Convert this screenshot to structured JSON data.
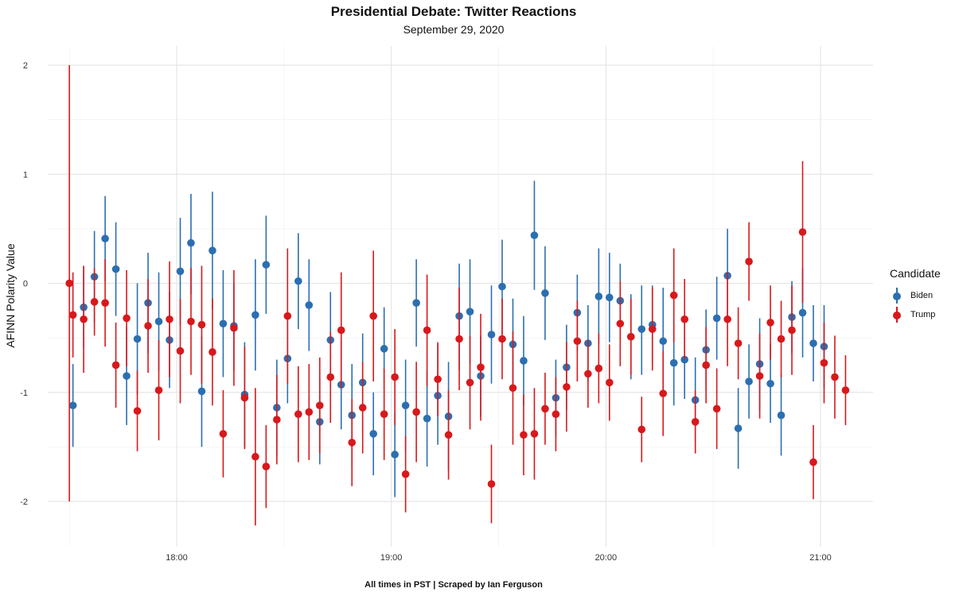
{
  "title": "Presidential Debate: Twitter Reactions",
  "subtitle": "September 29, 2020",
  "caption": "All times in PST | Scraped by Ian Ferguson",
  "legend": {
    "title": "Candidate",
    "items": [
      {
        "label": "Biden",
        "color": "#2C6FB0"
      },
      {
        "label": "Trump",
        "color": "#D7191C"
      }
    ]
  },
  "chart_data": {
    "type": "scatter",
    "subtype": "pointrange",
    "ylabel": "AFINN Polarity Value",
    "xlabel": "",
    "x_unit": "time (PST)",
    "xlim": [
      "17:30",
      "21:05"
    ],
    "ylim": [
      -2.4,
      2.2
    ],
    "x_ticks": [
      "18:00",
      "19:00",
      "20:00",
      "21:00"
    ],
    "y_ticks": [
      -2,
      -1,
      0,
      1,
      2
    ],
    "y_tick_labels": [
      "-2",
      "-1",
      "0",
      "1",
      "2"
    ],
    "grid": true,
    "legend_position": "right",
    "series": [
      {
        "name": "Biden",
        "color": "#2C6FB0",
        "points": [
          {
            "x": "17:31",
            "y": -1.12,
            "lo": -1.5,
            "hi": -0.74
          },
          {
            "x": "17:34",
            "y": -0.22,
            "lo": -0.6,
            "hi": 0.16
          },
          {
            "x": "17:37",
            "y": 0.06,
            "lo": -0.36,
            "hi": 0.48
          },
          {
            "x": "17:40",
            "y": 0.41,
            "lo": 0.02,
            "hi": 0.8
          },
          {
            "x": "17:43",
            "y": 0.13,
            "lo": -0.3,
            "hi": 0.56
          },
          {
            "x": "17:46",
            "y": -0.85,
            "lo": -1.3,
            "hi": -0.4
          },
          {
            "x": "17:49",
            "y": -0.51,
            "lo": -1.02,
            "hi": 0.0
          },
          {
            "x": "17:52",
            "y": -0.18,
            "lo": -0.64,
            "hi": 0.28
          },
          {
            "x": "17:55",
            "y": -0.35,
            "lo": -0.8,
            "hi": 0.1
          },
          {
            "x": "17:58",
            "y": -0.52,
            "lo": -0.96,
            "hi": -0.08
          },
          {
            "x": "18:01",
            "y": 0.11,
            "lo": -0.38,
            "hi": 0.6
          },
          {
            "x": "18:04",
            "y": 0.37,
            "lo": -0.1,
            "hi": 0.82
          },
          {
            "x": "18:07",
            "y": -0.99,
            "lo": -1.5,
            "hi": -0.48
          },
          {
            "x": "18:10",
            "y": 0.3,
            "lo": -0.24,
            "hi": 0.84
          },
          {
            "x": "18:13",
            "y": -0.37,
            "lo": -0.86,
            "hi": 0.12
          },
          {
            "x": "18:16",
            "y": -0.39,
            "lo": -0.8,
            "hi": 0.0
          },
          {
            "x": "18:19",
            "y": -1.02,
            "lo": -1.5,
            "hi": -0.54
          },
          {
            "x": "18:22",
            "y": -0.29,
            "lo": -0.8,
            "hi": 0.22
          },
          {
            "x": "18:25",
            "y": 0.17,
            "lo": -0.28,
            "hi": 0.62
          },
          {
            "x": "18:28",
            "y": -1.14,
            "lo": -1.58,
            "hi": -0.7
          },
          {
            "x": "18:31",
            "y": -0.69,
            "lo": -1.1,
            "hi": -0.28
          },
          {
            "x": "18:34",
            "y": 0.02,
            "lo": -0.42,
            "hi": 0.46
          },
          {
            "x": "18:37",
            "y": -0.2,
            "lo": -0.62,
            "hi": 0.22
          },
          {
            "x": "18:40",
            "y": -1.27,
            "lo": -1.66,
            "hi": -0.88
          },
          {
            "x": "18:43",
            "y": -0.52,
            "lo": -0.96,
            "hi": -0.08
          },
          {
            "x": "18:46",
            "y": -0.93,
            "lo": -1.34,
            "hi": -0.52
          },
          {
            "x": "18:49",
            "y": -1.21,
            "lo": -1.68,
            "hi": -0.74
          },
          {
            "x": "18:52",
            "y": -0.91,
            "lo": -1.36,
            "hi": -0.46
          },
          {
            "x": "18:55",
            "y": -1.38,
            "lo": -1.76,
            "hi": -1.0
          },
          {
            "x": "18:58",
            "y": -0.6,
            "lo": -0.98,
            "hi": -0.22
          },
          {
            "x": "19:01",
            "y": -1.57,
            "lo": -1.96,
            "hi": -1.18
          },
          {
            "x": "19:04",
            "y": -1.12,
            "lo": -1.54,
            "hi": -0.7
          },
          {
            "x": "19:07",
            "y": -0.18,
            "lo": -0.58,
            "hi": 0.22
          },
          {
            "x": "19:10",
            "y": -1.24,
            "lo": -1.68,
            "hi": -0.8
          },
          {
            "x": "19:13",
            "y": -1.03,
            "lo": -1.48,
            "hi": -0.56
          },
          {
            "x": "19:16",
            "y": -1.22,
            "lo": -1.72,
            "hi": -0.72
          },
          {
            "x": "19:19",
            "y": -0.3,
            "lo": -0.8,
            "hi": 0.18
          },
          {
            "x": "19:22",
            "y": -0.26,
            "lo": -0.74,
            "hi": 0.22
          },
          {
            "x": "19:25",
            "y": -0.85,
            "lo": -1.22,
            "hi": -0.48
          },
          {
            "x": "19:28",
            "y": -0.47,
            "lo": -0.92,
            "hi": -0.02
          },
          {
            "x": "19:31",
            "y": -0.03,
            "lo": -0.46,
            "hi": 0.4
          },
          {
            "x": "19:34",
            "y": -0.56,
            "lo": -0.98,
            "hi": -0.14
          },
          {
            "x": "19:37",
            "y": -0.71,
            "lo": -1.12,
            "hi": -0.3
          },
          {
            "x": "19:40",
            "y": 0.44,
            "lo": -0.06,
            "hi": 0.94
          },
          {
            "x": "19:43",
            "y": -0.09,
            "lo": -0.52,
            "hi": 0.34
          },
          {
            "x": "19:46",
            "y": -1.05,
            "lo": -1.4,
            "hi": -0.7
          },
          {
            "x": "19:49",
            "y": -0.77,
            "lo": -1.16,
            "hi": -0.38
          },
          {
            "x": "19:52",
            "y": -0.27,
            "lo": -0.62,
            "hi": 0.08
          },
          {
            "x": "19:55",
            "y": -0.55,
            "lo": -0.9,
            "hi": -0.2
          },
          {
            "x": "19:58",
            "y": -0.12,
            "lo": -0.56,
            "hi": 0.32
          },
          {
            "x": "20:01",
            "y": -0.13,
            "lo": -0.54,
            "hi": 0.28
          },
          {
            "x": "20:04",
            "y": -0.16,
            "lo": -0.5,
            "hi": 0.18
          },
          {
            "x": "20:07",
            "y": -0.49,
            "lo": -0.88,
            "hi": -0.1
          },
          {
            "x": "20:10",
            "y": -0.42,
            "lo": -0.84,
            "hi": -0.02
          },
          {
            "x": "20:13",
            "y": -0.38,
            "lo": -0.74,
            "hi": -0.02
          },
          {
            "x": "20:16",
            "y": -0.53,
            "lo": -1.02,
            "hi": -0.04
          },
          {
            "x": "20:19",
            "y": -0.73,
            "lo": -1.12,
            "hi": -0.34
          },
          {
            "x": "20:22",
            "y": -0.7,
            "lo": -1.06,
            "hi": -0.34
          },
          {
            "x": "20:25",
            "y": -1.07,
            "lo": -1.46,
            "hi": -0.68
          },
          {
            "x": "20:28",
            "y": -0.61,
            "lo": -0.98,
            "hi": -0.24
          },
          {
            "x": "20:31",
            "y": -0.32,
            "lo": -0.7,
            "hi": 0.06
          },
          {
            "x": "20:34",
            "y": 0.07,
            "lo": -0.36,
            "hi": 0.5
          },
          {
            "x": "20:37",
            "y": -1.33,
            "lo": -1.7,
            "hi": -0.96
          },
          {
            "x": "20:40",
            "y": -0.9,
            "lo": -1.24,
            "hi": -0.56
          },
          {
            "x": "20:43",
            "y": -0.74,
            "lo": -1.16,
            "hi": -0.32
          },
          {
            "x": "20:46",
            "y": -0.92,
            "lo": -1.28,
            "hi": -0.56
          },
          {
            "x": "20:49",
            "y": -1.21,
            "lo": -1.58,
            "hi": -0.84
          },
          {
            "x": "20:52",
            "y": -0.31,
            "lo": -0.64,
            "hi": 0.02
          },
          {
            "x": "20:55",
            "y": -0.27,
            "lo": -0.68,
            "hi": 0.14
          },
          {
            "x": "20:58",
            "y": -0.55,
            "lo": -0.9,
            "hi": -0.2
          },
          {
            "x": "21:01",
            "y": -0.58,
            "lo": -0.96,
            "hi": -0.2
          }
        ]
      },
      {
        "name": "Trump",
        "color": "#D7191C",
        "points": [
          {
            "x": "17:30",
            "y": 0.0,
            "lo": -2.0,
            "hi": 2.0
          },
          {
            "x": "17:31",
            "y": -0.29,
            "lo": -0.68,
            "hi": 0.1
          },
          {
            "x": "17:34",
            "y": -0.33,
            "lo": -0.82,
            "hi": 0.16
          },
          {
            "x": "17:37",
            "y": -0.17,
            "lo": -0.48,
            "hi": 0.14
          },
          {
            "x": "17:40",
            "y": -0.18,
            "lo": -0.58,
            "hi": 0.22
          },
          {
            "x": "17:43",
            "y": -0.75,
            "lo": -1.14,
            "hi": -0.36
          },
          {
            "x": "17:46",
            "y": -0.32,
            "lo": -0.76,
            "hi": 0.12
          },
          {
            "x": "17:49",
            "y": -1.17,
            "lo": -1.54,
            "hi": -0.8
          },
          {
            "x": "17:52",
            "y": -0.39,
            "lo": -0.82,
            "hi": 0.04
          },
          {
            "x": "17:55",
            "y": -0.98,
            "lo": -1.44,
            "hi": -0.52
          },
          {
            "x": "17:58",
            "y": -0.33,
            "lo": -0.86,
            "hi": 0.2
          },
          {
            "x": "18:01",
            "y": -0.62,
            "lo": -1.1,
            "hi": -0.14
          },
          {
            "x": "18:04",
            "y": -0.35,
            "lo": -0.84,
            "hi": 0.14
          },
          {
            "x": "18:07",
            "y": -0.38,
            "lo": -0.92,
            "hi": 0.16
          },
          {
            "x": "18:10",
            "y": -0.63,
            "lo": -1.12,
            "hi": -0.14
          },
          {
            "x": "18:13",
            "y": -1.38,
            "lo": -1.78,
            "hi": -0.98
          },
          {
            "x": "18:16",
            "y": -0.41,
            "lo": -0.94,
            "hi": 0.12
          },
          {
            "x": "18:19",
            "y": -1.05,
            "lo": -1.52,
            "hi": -0.58
          },
          {
            "x": "18:22",
            "y": -1.59,
            "lo": -2.22,
            "hi": -0.96
          },
          {
            "x": "18:25",
            "y": -1.68,
            "lo": -2.06,
            "hi": -1.3
          },
          {
            "x": "18:28",
            "y": -1.25,
            "lo": -1.66,
            "hi": -0.84
          },
          {
            "x": "18:31",
            "y": -0.3,
            "lo": -0.92,
            "hi": 0.32
          },
          {
            "x": "18:34",
            "y": -1.2,
            "lo": -1.64,
            "hi": -0.76
          },
          {
            "x": "18:37",
            "y": -1.18,
            "lo": -1.62,
            "hi": -0.74
          },
          {
            "x": "18:40",
            "y": -1.12,
            "lo": -1.56,
            "hi": -0.68
          },
          {
            "x": "18:43",
            "y": -0.86,
            "lo": -1.28,
            "hi": -0.44
          },
          {
            "x": "18:46",
            "y": -0.43,
            "lo": -0.96,
            "hi": 0.1
          },
          {
            "x": "18:49",
            "y": -1.46,
            "lo": -1.86,
            "hi": -1.06
          },
          {
            "x": "18:52",
            "y": -1.14,
            "lo": -1.56,
            "hi": -0.72
          },
          {
            "x": "18:55",
            "y": -0.3,
            "lo": -0.9,
            "hi": 0.3
          },
          {
            "x": "18:58",
            "y": -1.2,
            "lo": -1.62,
            "hi": -0.78
          },
          {
            "x": "19:01",
            "y": -0.86,
            "lo": -1.3,
            "hi": -0.42
          },
          {
            "x": "19:04",
            "y": -1.75,
            "lo": -2.1,
            "hi": -1.4
          },
          {
            "x": "19:07",
            "y": -1.18,
            "lo": -1.64,
            "hi": -0.72
          },
          {
            "x": "19:10",
            "y": -0.43,
            "lo": -0.94,
            "hi": 0.08
          },
          {
            "x": "19:13",
            "y": -0.88,
            "lo": -1.22,
            "hi": -0.54
          },
          {
            "x": "19:16",
            "y": -1.39,
            "lo": -1.8,
            "hi": -0.98
          },
          {
            "x": "19:19",
            "y": -0.51,
            "lo": -0.98,
            "hi": -0.04
          },
          {
            "x": "19:22",
            "y": -0.91,
            "lo": -1.34,
            "hi": -0.48
          },
          {
            "x": "19:25",
            "y": -0.77,
            "lo": -1.26,
            "hi": -0.28
          },
          {
            "x": "19:28",
            "y": -1.84,
            "lo": -2.2,
            "hi": -1.48
          },
          {
            "x": "19:31",
            "y": -0.51,
            "lo": -0.88,
            "hi": -0.14
          },
          {
            "x": "19:34",
            "y": -0.96,
            "lo": -1.48,
            "hi": -0.44
          },
          {
            "x": "19:37",
            "y": -1.39,
            "lo": -1.76,
            "hi": -1.02
          },
          {
            "x": "19:40",
            "y": -1.38,
            "lo": -1.8,
            "hi": -0.96
          },
          {
            "x": "19:43",
            "y": -1.15,
            "lo": -1.48,
            "hi": -0.82
          },
          {
            "x": "19:46",
            "y": -1.2,
            "lo": -1.54,
            "hi": -0.86
          },
          {
            "x": "19:49",
            "y": -0.95,
            "lo": -1.36,
            "hi": -0.54
          },
          {
            "x": "19:52",
            "y": -0.53,
            "lo": -0.9,
            "hi": -0.16
          },
          {
            "x": "19:55",
            "y": -0.83,
            "lo": -1.14,
            "hi": -0.52
          },
          {
            "x": "19:58",
            "y": -0.78,
            "lo": -1.1,
            "hi": -0.46
          },
          {
            "x": "20:01",
            "y": -0.91,
            "lo": -1.26,
            "hi": -0.56
          },
          {
            "x": "20:04",
            "y": -0.37,
            "lo": -0.76,
            "hi": 0.02
          },
          {
            "x": "20:07",
            "y": -0.49,
            "lo": -0.84,
            "hi": -0.14
          },
          {
            "x": "20:10",
            "y": -1.34,
            "lo": -1.64,
            "hi": -1.04
          },
          {
            "x": "20:13",
            "y": -0.42,
            "lo": -0.8,
            "hi": -0.04
          },
          {
            "x": "20:16",
            "y": -1.01,
            "lo": -1.4,
            "hi": -0.62
          },
          {
            "x": "20:19",
            "y": -0.11,
            "lo": -0.54,
            "hi": 0.32
          },
          {
            "x": "20:22",
            "y": -0.33,
            "lo": -0.7,
            "hi": 0.04
          },
          {
            "x": "20:25",
            "y": -1.27,
            "lo": -1.56,
            "hi": -0.98
          },
          {
            "x": "20:28",
            "y": -0.75,
            "lo": -1.1,
            "hi": -0.4
          },
          {
            "x": "20:31",
            "y": -1.15,
            "lo": -1.52,
            "hi": -0.78
          },
          {
            "x": "20:34",
            "y": -0.33,
            "lo": -0.76,
            "hi": 0.1
          },
          {
            "x": "20:37",
            "y": -0.55,
            "lo": -0.88,
            "hi": -0.22
          },
          {
            "x": "20:40",
            "y": 0.2,
            "lo": -0.16,
            "hi": 0.56
          },
          {
            "x": "20:43",
            "y": -0.85,
            "lo": -1.24,
            "hi": -0.46
          },
          {
            "x": "20:46",
            "y": -0.36,
            "lo": -0.7,
            "hi": -0.02
          },
          {
            "x": "20:49",
            "y": -0.51,
            "lo": -0.86,
            "hi": -0.16
          },
          {
            "x": "20:52",
            "y": -0.43,
            "lo": -0.84,
            "hi": -0.02
          },
          {
            "x": "20:55",
            "y": 0.47,
            "lo": -0.18,
            "hi": 1.12
          },
          {
            "x": "20:58",
            "y": -1.64,
            "lo": -1.98,
            "hi": -1.3
          },
          {
            "x": "21:01",
            "y": -0.73,
            "lo": -1.1,
            "hi": -0.36
          },
          {
            "x": "21:04",
            "y": -0.86,
            "lo": -1.24,
            "hi": -0.48
          },
          {
            "x": "21:07",
            "y": -0.98,
            "lo": -1.3,
            "hi": -0.66
          }
        ]
      }
    ]
  }
}
